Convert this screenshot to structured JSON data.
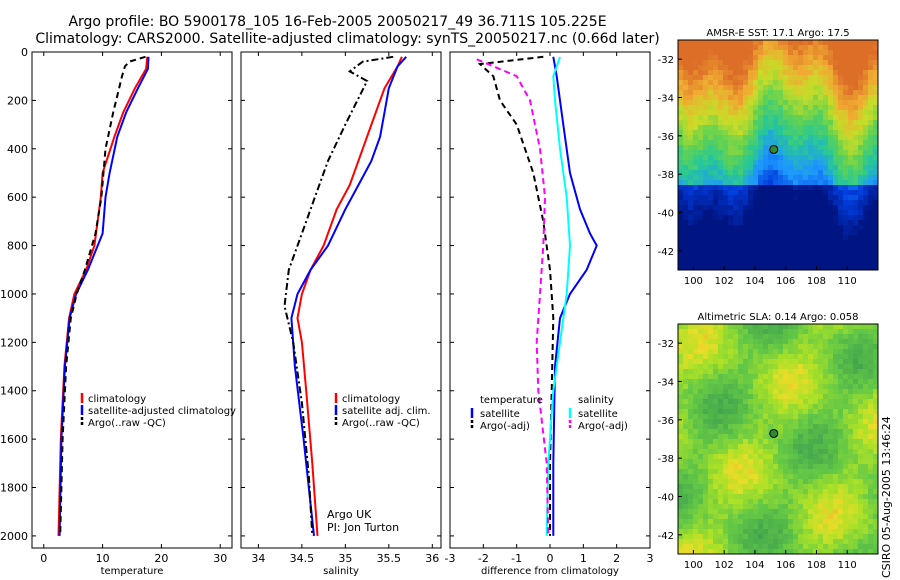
{
  "title": {
    "line1": "Argo profile: BO 5900178_105 16-Feb-2005 20050217_49 36.711S 105.225E",
    "line2": "Climatology: CARS2000. Satellite-adjusted climatology: synTS_20050217.nc (0.66d later)"
  },
  "credit": {
    "line1": "Argo UK",
    "line2": "PI: Jon Turton"
  },
  "side_label": "CSIRO 05-Aug-2005 13:46:24",
  "colors": {
    "red": "#ff0000",
    "blue": "#0000ff",
    "black": "#000000",
    "cyan": "#00ffff",
    "magenta": "#ff00ff",
    "marker_fill": "#2e8b2e"
  },
  "chart_data": [
    {
      "type": "line",
      "xlabel": "temperature",
      "ylabel": "",
      "xlim": [
        -2,
        32
      ],
      "ylim": [
        0,
        2050
      ],
      "y_inverted": true,
      "xticks": [
        0,
        10,
        20,
        30
      ],
      "yticks": [
        0,
        200,
        400,
        600,
        800,
        1000,
        1200,
        1400,
        1600,
        1800,
        2000
      ],
      "show_yticklabels": true,
      "legend": [
        "climatology",
        "satellite-adjusted climatology",
        "Argo(..raw -QC)"
      ],
      "legend_placement": "bottom-right",
      "series": [
        {
          "name": "climatology",
          "color": "red",
          "dash": "solid",
          "x": [
            17.6,
            17.4,
            15.5,
            13.5,
            12,
            10,
            9.7,
            8.6,
            7.2,
            5.2,
            4.3,
            3.5,
            2.9,
            2.5
          ],
          "y": [
            20,
            70,
            150,
            250,
            350,
            500,
            600,
            800,
            900,
            1000,
            1100,
            1300,
            1600,
            2000
          ]
        },
        {
          "name": "satellite-adjusted climatology",
          "color": "blue",
          "dash": "solid",
          "x": [
            17.8,
            17.7,
            16,
            14,
            12.5,
            11.2,
            10.5,
            10,
            7.5,
            5.5,
            4.4,
            3.6,
            3.0,
            2.7
          ],
          "y": [
            20,
            70,
            150,
            250,
            350,
            500,
            600,
            750,
            900,
            1000,
            1100,
            1300,
            1600,
            2000
          ]
        },
        {
          "name": "Argo(..raw -QC)",
          "color": "black",
          "dash": "dash",
          "x": [
            17.3,
            14.5,
            13.8,
            13.3,
            12.8,
            11.8,
            10.5,
            9.8,
            8.8,
            7,
            5.6,
            4.6,
            3.8,
            3.2,
            2.8
          ],
          "y": [
            20,
            40,
            60,
            100,
            150,
            250,
            400,
            600,
            750,
            900,
            1000,
            1100,
            1300,
            1600,
            2000
          ]
        }
      ]
    },
    {
      "type": "line",
      "xlabel": "salinity",
      "ylabel": "",
      "xlim": [
        33.8,
        36.1
      ],
      "ylim": [
        0,
        2050
      ],
      "y_inverted": true,
      "xticks": [
        34,
        34.5,
        35,
        35.5,
        36
      ],
      "yticks": [
        0,
        200,
        400,
        600,
        800,
        1000,
        1200,
        1400,
        1600,
        1800,
        2000
      ],
      "show_yticklabels": false,
      "legend": [
        "climatology",
        "satellite adj. clim.",
        "Argo(..raw -QC)"
      ],
      "legend_placement": "bottom-right",
      "series": [
        {
          "name": "climatology",
          "color": "red",
          "dash": "solid",
          "x": [
            35.65,
            35.6,
            35.45,
            35.3,
            35.15,
            35.05,
            34.9,
            34.75,
            34.6,
            34.5,
            34.45,
            34.5,
            34.55,
            34.62,
            34.68
          ],
          "y": [
            20,
            60,
            150,
            300,
            450,
            550,
            650,
            800,
            900,
            1000,
            1100,
            1200,
            1400,
            1700,
            2000
          ]
        },
        {
          "name": "satellite adj. clim.",
          "color": "blue",
          "dash": "solid",
          "x": [
            35.7,
            35.6,
            35.5,
            35.45,
            35.4,
            35.3,
            35.15,
            35.0,
            34.8,
            34.6,
            34.45,
            34.38,
            34.42,
            34.52,
            34.64
          ],
          "y": [
            20,
            60,
            150,
            250,
            350,
            450,
            550,
            650,
            800,
            900,
            1000,
            1100,
            1300,
            1600,
            2000
          ]
        },
        {
          "name": "Argo(..raw -QC)",
          "color": "black",
          "dash": "dashdot",
          "x": [
            35.55,
            35.2,
            35.05,
            35.25,
            35.0,
            34.8,
            34.65,
            34.5,
            34.35,
            34.3,
            34.4,
            34.5,
            34.58,
            34.62
          ],
          "y": [
            20,
            40,
            80,
            120,
            300,
            450,
            600,
            750,
            900,
            1050,
            1200,
            1450,
            1750,
            2000
          ]
        }
      ]
    },
    {
      "type": "line",
      "xlabel": "difference from climatology",
      "ylabel": "",
      "xlim": [
        -3,
        3
      ],
      "ylim": [
        0,
        2050
      ],
      "y_inverted": true,
      "xticks": [
        -3,
        -2,
        -1,
        0,
        1,
        2,
        3
      ],
      "yticks": [
        0,
        200,
        400,
        600,
        800,
        1000,
        1200,
        1400,
        1600,
        1800,
        2000
      ],
      "show_yticklabels": false,
      "legend_groups": [
        {
          "title": "temperature",
          "items": [
            "satellite",
            "Argo(-adj)"
          ]
        },
        {
          "title": "salinity",
          "items": [
            "satellite",
            "Argo(-adj)"
          ]
        }
      ],
      "legend_placement": "bottom",
      "series": [
        {
          "name": "temperature satellite",
          "color": "blue",
          "dash": "solid",
          "x": [
            0.1,
            0.2,
            0.4,
            0.6,
            0.9,
            1.2,
            1.4,
            1.1,
            0.6,
            0.3,
            0.15,
            0.1,
            0.1
          ],
          "y": [
            20,
            100,
            300,
            500,
            650,
            750,
            800,
            900,
            1000,
            1100,
            1300,
            1700,
            2000
          ]
        },
        {
          "name": "temperature Argo(-adj)",
          "color": "black",
          "dash": "dash",
          "x": [
            -0.2,
            -2.1,
            -1.7,
            -1.5,
            -1.0,
            -0.5,
            -0.2,
            0.0,
            0.1,
            0.05,
            0.0,
            0.0
          ],
          "y": [
            20,
            50,
            100,
            200,
            300,
            500,
            700,
            900,
            1100,
            1400,
            1700,
            2000
          ]
        },
        {
          "name": "salinity satellite",
          "color": "cyan",
          "dash": "solid",
          "x": [
            0.3,
            0.1,
            0.15,
            0.3,
            0.5,
            0.6,
            0.5,
            0.3,
            0.1,
            -0.05,
            -0.1
          ],
          "y": [
            20,
            100,
            200,
            400,
            600,
            800,
            1000,
            1200,
            1400,
            1700,
            2000
          ]
        },
        {
          "name": "salinity Argo(-adj)",
          "color": "magenta",
          "dash": "dash",
          "x": [
            -2.2,
            -1.0,
            -0.6,
            -0.3,
            -0.15,
            -0.2,
            -0.3,
            -0.4,
            -0.35,
            -0.1,
            -0.05
          ],
          "y": [
            30,
            100,
            200,
            400,
            600,
            800,
            1000,
            1200,
            1400,
            1700,
            2000
          ]
        }
      ]
    },
    {
      "type": "heatmap",
      "title": "AMSR-E SST: 17.1 Argo: 17.5",
      "xlim": [
        99,
        112
      ],
      "ylim": [
        -43,
        -31
      ],
      "xticks": [
        100,
        102,
        104,
        106,
        108,
        110
      ],
      "yticks": [
        -32,
        -34,
        -36,
        -38,
        -40,
        -42
      ],
      "marker": {
        "lon": 105.225,
        "lat": -36.711
      }
    },
    {
      "type": "heatmap",
      "title": "Altimetric SLA: 0.14 Argo: 0.058",
      "xlim": [
        99,
        112
      ],
      "ylim": [
        -43,
        -31
      ],
      "xticks": [
        100,
        102,
        104,
        106,
        108,
        110
      ],
      "yticks": [
        -32,
        -34,
        -36,
        -38,
        -40,
        -42
      ],
      "marker": {
        "lon": 105.225,
        "lat": -36.711
      }
    }
  ]
}
